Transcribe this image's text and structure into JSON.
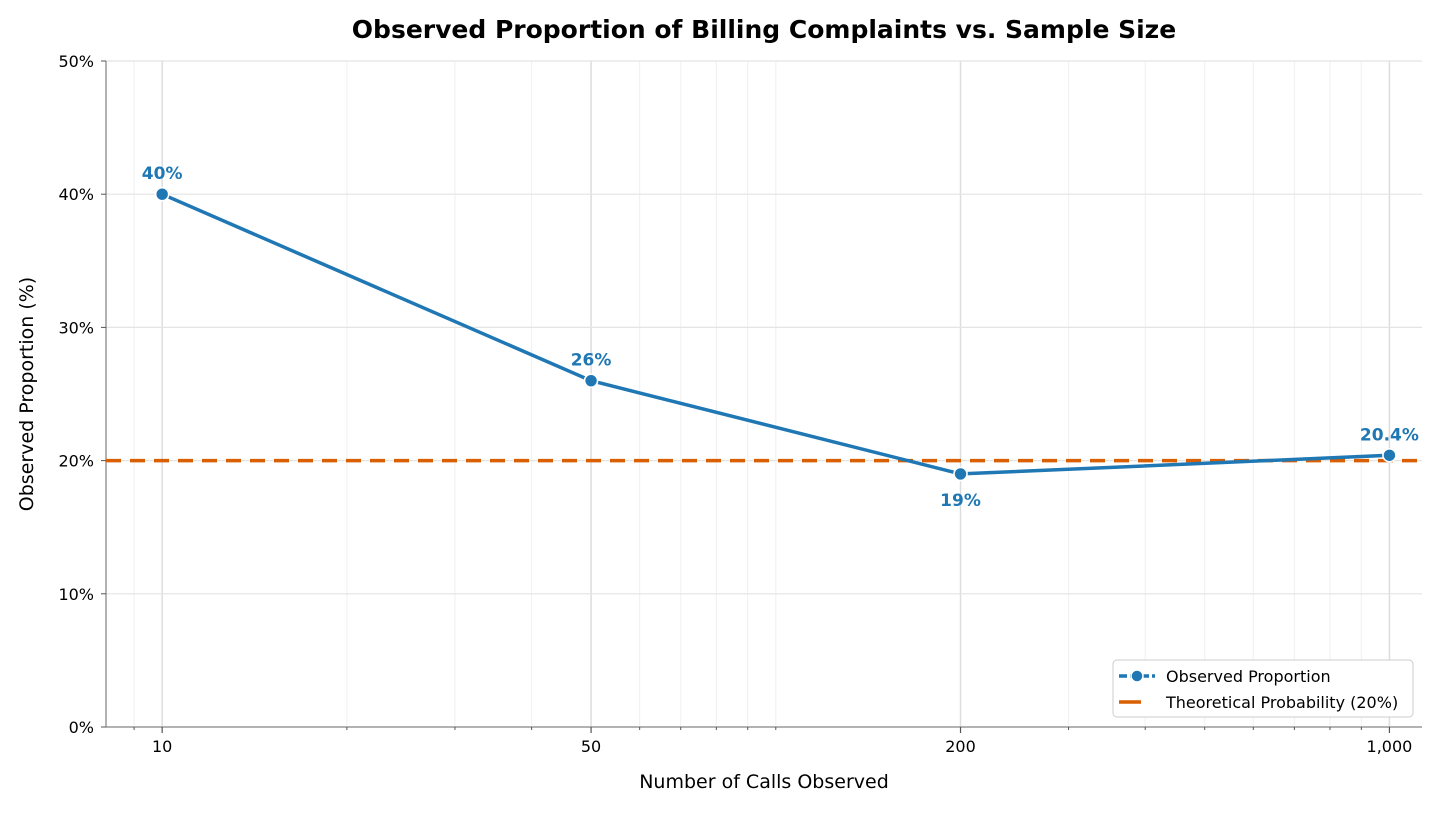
{
  "chart_data": {
    "type": "line",
    "title": "Observed Proportion of Billing Complaints vs. Sample Size",
    "xlabel": "Number of Calls Observed",
    "ylabel": "Observed Proportion (%)",
    "x_scale": "log",
    "xlim": [
      8.1,
      1130
    ],
    "ylim": [
      0,
      50
    ],
    "x_ticks": [
      10,
      50,
      200,
      1000
    ],
    "x_tick_labels": [
      "10",
      "50",
      "200",
      "1,000"
    ],
    "y_ticks": [
      0,
      10,
      20,
      30,
      40,
      50
    ],
    "y_tick_labels": [
      "0%",
      "10%",
      "20%",
      "30%",
      "40%",
      "50%"
    ],
    "grid": true,
    "legend_position": "bottom-right",
    "series": [
      {
        "name": "Observed Proportion",
        "color": "#1f77b4",
        "x": [
          10,
          50,
          200,
          1000
        ],
        "values": [
          40,
          26,
          19,
          20.4
        ],
        "data_labels": [
          "40%",
          "26%",
          "19%",
          "20.4%"
        ],
        "label_positions": [
          "above",
          "above",
          "below",
          "above"
        ]
      }
    ],
    "reference_lines": [
      {
        "name": "Theoretical Probability (20%)",
        "y": 20,
        "color": "#d95f02",
        "style": "dashed"
      }
    ]
  }
}
